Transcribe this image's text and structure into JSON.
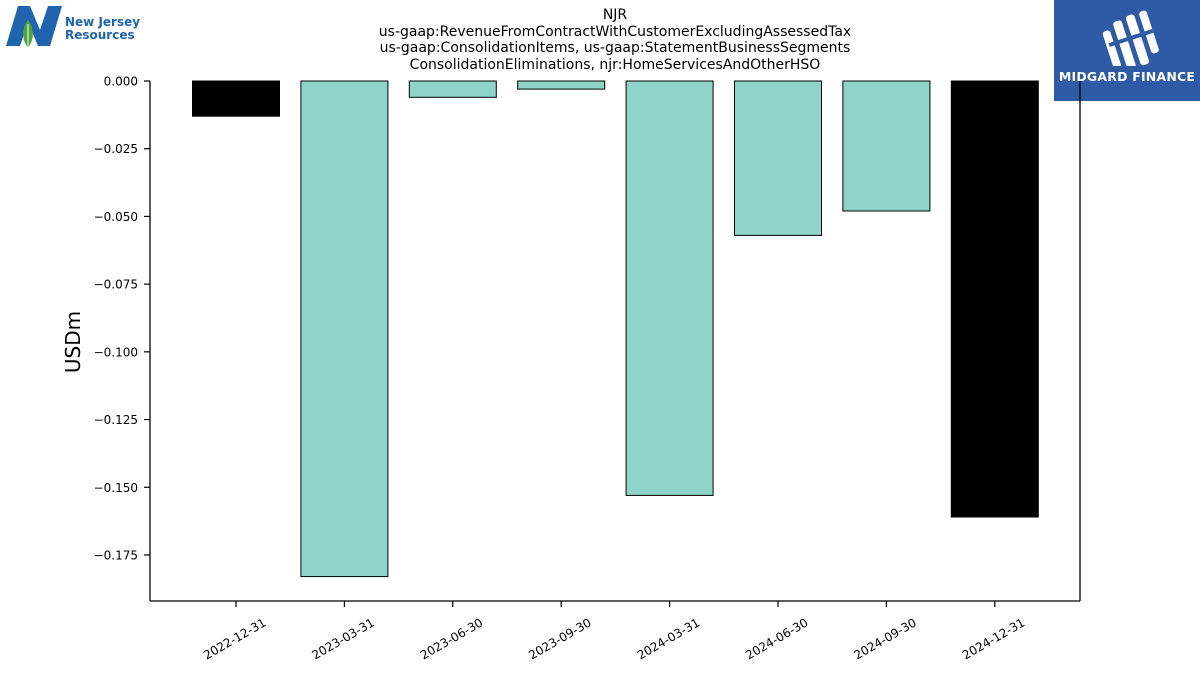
{
  "header": {
    "title_lines": [
      "NJR",
      "us-gaap:RevenueFromContractWithCustomerExcludingAssessedTax",
      "us-gaap:ConsolidationItems, us-gaap:StatementBusinessSegments",
      "ConsolidationEliminations, njr:HomeServicesAndOtherHSO"
    ]
  },
  "logos": {
    "left": {
      "line1": "New Jersey",
      "line2": "Resources"
    },
    "right": {
      "text": "MIDGARD FINANCE"
    }
  },
  "colors": {
    "bar_teal": "#8fd4c8",
    "bar_black": "#000000",
    "axis": "#000000",
    "logo_right_bg": "#2f5aa6",
    "logo_left_blue": "#1f64ad",
    "logo_left_green": "#4ea63b"
  },
  "chart_data": {
    "type": "bar",
    "title": "NJR\nus-gaap:RevenueFromContractWithCustomerExcludingAssessedTax\nus-gaap:ConsolidationItems, us-gaap:StatementBusinessSegments\nConsolidationEliminations, njr:HomeServicesAndOtherHSO",
    "xlabel": "",
    "ylabel": "USDm",
    "categories": [
      "2022-12-31",
      "2023-03-31",
      "2023-06-30",
      "2023-09-30",
      "2024-03-31",
      "2024-06-30",
      "2024-09-30",
      "2024-12-31"
    ],
    "values": [
      -0.013,
      -0.183,
      -0.006,
      -0.003,
      -0.153,
      -0.057,
      -0.048,
      -0.161
    ],
    "bar_colors": [
      "#000000",
      "#8fd4c8",
      "#8fd4c8",
      "#8fd4c8",
      "#8fd4c8",
      "#8fd4c8",
      "#8fd4c8",
      "#000000"
    ],
    "ylim": [
      -0.192,
      0.0
    ],
    "yticks": [
      0.0,
      -0.025,
      -0.05,
      -0.075,
      -0.1,
      -0.125,
      -0.15,
      -0.175
    ],
    "ytick_labels": [
      "0.000",
      "−0.025",
      "−0.050",
      "−0.075",
      "−0.100",
      "−0.125",
      "−0.150",
      "−0.175"
    ],
    "grid": false,
    "legend": "none"
  }
}
